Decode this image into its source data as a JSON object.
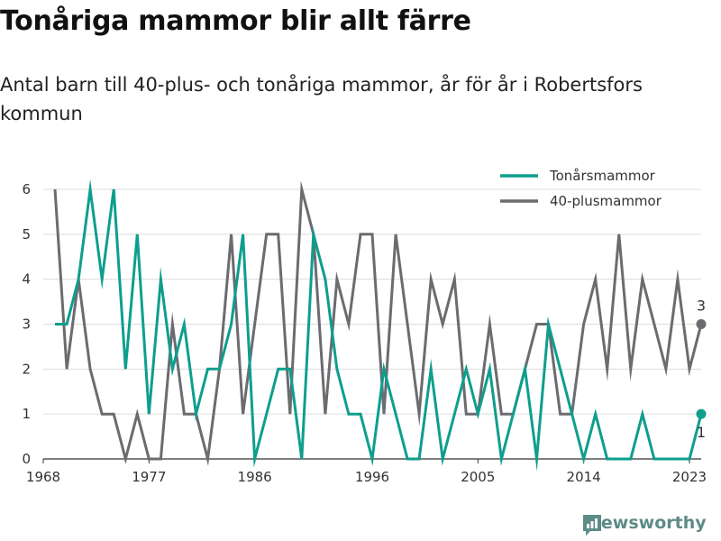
{
  "title": "Tonåriga mammor blir allt färre",
  "subtitle": "Antal barn till 40-plus- och tonåriga mammor, år för år i Robertsfors kommun",
  "brand": {
    "name": "Newsworthy",
    "icon": "newsworthy-logo-icon"
  },
  "chart_data": {
    "type": "line",
    "title": "Tonåriga mammor blir allt färre",
    "subtitle": "Antal barn till 40-plus- och tonåriga mammor, år för år i Robertsfors kommun",
    "xlabel": "",
    "ylabel": "",
    "xlim": [
      1968,
      2024
    ],
    "ylim": [
      0,
      6
    ],
    "x_ticks": [
      1968,
      1977,
      1986,
      1996,
      2005,
      2014,
      2023
    ],
    "y_ticks": [
      0,
      1,
      2,
      3,
      4,
      5,
      6
    ],
    "grid": "horizontal",
    "legend_position": "top-right",
    "x": [
      1969,
      1970,
      1971,
      1972,
      1973,
      1974,
      1975,
      1976,
      1977,
      1978,
      1979,
      1980,
      1981,
      1982,
      1983,
      1984,
      1985,
      1986,
      1987,
      1988,
      1989,
      1990,
      1991,
      1992,
      1993,
      1994,
      1995,
      1996,
      1997,
      1998,
      1999,
      2000,
      2001,
      2002,
      2003,
      2004,
      2005,
      2006,
      2007,
      2008,
      2009,
      2010,
      2011,
      2012,
      2013,
      2014,
      2015,
      2016,
      2017,
      2018,
      2019,
      2020,
      2021,
      2022,
      2023,
      2024
    ],
    "series": [
      {
        "name": "Tonårsmammor",
        "color": "#0e9e8e",
        "values": [
          3,
          3,
          4,
          6,
          4,
          6,
          2,
          5,
          1,
          4,
          2,
          3,
          1,
          2,
          2,
          3,
          5,
          0,
          1,
          2,
          2,
          0,
          5,
          4,
          2,
          1,
          1,
          0,
          2,
          1,
          0,
          0,
          2,
          0,
          1,
          2,
          1,
          2,
          0,
          1,
          2,
          0,
          3,
          2,
          1,
          0,
          1,
          0,
          0,
          0,
          1,
          0,
          0,
          0,
          0,
          1
        ],
        "end_label": "1"
      },
      {
        "name": "40-plusmammor",
        "color": "#6b6b70",
        "values": [
          6,
          2,
          4,
          2,
          1,
          1,
          0,
          1,
          0,
          0,
          3,
          1,
          1,
          0,
          2,
          5,
          1,
          3,
          5,
          5,
          1,
          6,
          5,
          1,
          4,
          3,
          5,
          5,
          1,
          5,
          3,
          1,
          4,
          3,
          4,
          1,
          1,
          3,
          1,
          1,
          2,
          3,
          3,
          1,
          1,
          3,
          4,
          2,
          5,
          2,
          4,
          3,
          2,
          4,
          2,
          3
        ],
        "end_label": "3"
      }
    ]
  }
}
